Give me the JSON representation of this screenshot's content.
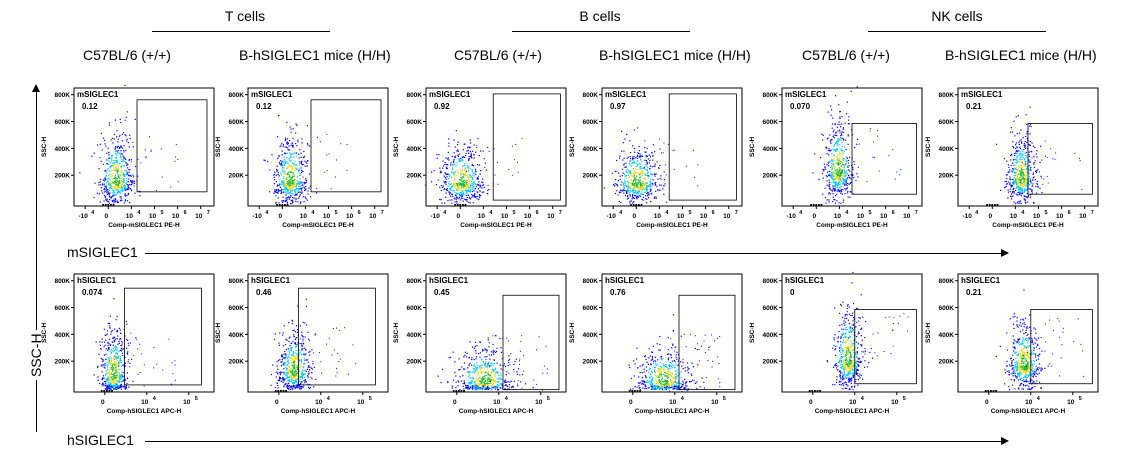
{
  "groups": [
    {
      "label": "T cells"
    },
    {
      "label": "B cells"
    },
    {
      "label": "NK cells"
    }
  ],
  "columns": [
    "C57BL/6 (+/+)",
    "B-hSIGLEC1 mice  (H/H)",
    "C57BL/6 (+/+)",
    "B-hSIGLEC1 mice (H/H)",
    "C57BL/6 (+/+)",
    "B-hSIGLEC1 mice (H/H)"
  ],
  "axis_labels": {
    "y": "SSC-H",
    "x_row1": "mSIGLEC1",
    "x_row2": "hSIGLEC1"
  },
  "colors": {
    "density_low": "#0000ff",
    "density_mid": "#00c8ff",
    "density_high": "#ffd700",
    "density_peak": "#22bb22",
    "gate": "#000000"
  },
  "chart_data": [
    {
      "type": "scatter",
      "row": 1,
      "col": 1,
      "gate_label": "mSIGLEC1",
      "percent": "0.12",
      "xlabel": "Comp-mSIGLEC1 PE-H",
      "ylabel": "SSC-H",
      "x_ticks": [
        "-10",
        "0",
        "10",
        "10",
        "10",
        "10"
      ],
      "x_tick_exps": [
        "4",
        "",
        "4",
        "5",
        "6",
        "7"
      ],
      "y_ticks": [
        "200K",
        "400K",
        "600K",
        "800K"
      ]
    },
    {
      "type": "scatter",
      "row": 1,
      "col": 2,
      "gate_label": "mSIGLEC1",
      "percent": "0.12",
      "xlabel": "Comp-mSIGLEC1 PE-H",
      "ylabel": "SSC-H",
      "x_ticks": [
        "-10",
        "0",
        "10",
        "10",
        "10",
        "10"
      ],
      "x_tick_exps": [
        "4",
        "",
        "4",
        "5",
        "6",
        "7"
      ],
      "y_ticks": [
        "200K",
        "400K",
        "600K",
        "800K"
      ]
    },
    {
      "type": "scatter",
      "row": 1,
      "col": 3,
      "gate_label": "mSIGLEC1",
      "percent": "0.92",
      "xlabel": "Comp-mSIGLEC1 PE-H",
      "ylabel": "SSC-H",
      "x_ticks": [
        "-10",
        "0",
        "10",
        "10",
        "10",
        "10"
      ],
      "x_tick_exps": [
        "4",
        "",
        "4",
        "5",
        "6",
        "7"
      ],
      "y_ticks": [
        "200K",
        "400K",
        "600K",
        "800K"
      ]
    },
    {
      "type": "scatter",
      "row": 1,
      "col": 4,
      "gate_label": "mSIGLEC1",
      "percent": "0.97",
      "xlabel": "Comp-mSIGLEC1 PE-H",
      "ylabel": "SSC-H",
      "x_ticks": [
        "-10",
        "0",
        "10",
        "10",
        "10",
        "10"
      ],
      "x_tick_exps": [
        "4",
        "",
        "4",
        "5",
        "6",
        "7"
      ],
      "y_ticks": [
        "200K",
        "400K",
        "600K",
        "800K"
      ]
    },
    {
      "type": "scatter",
      "row": 1,
      "col": 5,
      "gate_label": "mSIGLEC1",
      "percent": "0.070",
      "xlabel": "Comp-mSIGLEC1 PE-H",
      "ylabel": "SSC-H",
      "x_ticks": [
        "-10",
        "0",
        "10",
        "10",
        "10",
        "10"
      ],
      "x_tick_exps": [
        "4",
        "",
        "4",
        "5",
        "6",
        "7"
      ],
      "y_ticks": [
        "200K",
        "400K",
        "600K",
        "800K"
      ]
    },
    {
      "type": "scatter",
      "row": 1,
      "col": 6,
      "gate_label": "mSIGLEC1",
      "percent": "0.21",
      "xlabel": "Comp-mSIGLEC1 PE-H",
      "ylabel": "SSC-H",
      "x_ticks": [
        "-10",
        "0",
        "10",
        "10",
        "10",
        "10"
      ],
      "x_tick_exps": [
        "4",
        "",
        "4",
        "5",
        "6",
        "7"
      ],
      "y_ticks": [
        "200K",
        "400K",
        "600K",
        "800K"
      ]
    },
    {
      "type": "scatter",
      "row": 2,
      "col": 1,
      "gate_label": "hSIGLEC1",
      "percent": "0.074",
      "xlabel": "Comp-hSIGLEC1 APC-H",
      "ylabel": "SSC-H",
      "x_ticks": [
        "0",
        "10",
        "10"
      ],
      "x_tick_exps": [
        "",
        "4",
        "5"
      ],
      "y_ticks": [
        "200K",
        "400K",
        "600K",
        "800K"
      ]
    },
    {
      "type": "scatter",
      "row": 2,
      "col": 2,
      "gate_label": "hSIGLEC1",
      "percent": "0.46",
      "xlabel": "Comp-hSIGLEC1 APC-H",
      "ylabel": "SSC-H",
      "x_ticks": [
        "0",
        "10",
        "10"
      ],
      "x_tick_exps": [
        "",
        "4",
        "5"
      ],
      "y_ticks": [
        "200K",
        "400K",
        "600K",
        "800K"
      ]
    },
    {
      "type": "scatter",
      "row": 2,
      "col": 3,
      "gate_label": "hSIGLEC1",
      "percent": "0.45",
      "xlabel": "Comp-hSIGLEC1 APC-H",
      "ylabel": "SSC-H",
      "x_ticks": [
        "0",
        "10",
        "10"
      ],
      "x_tick_exps": [
        "",
        "4",
        "5"
      ],
      "y_ticks": [
        "200K",
        "400K",
        "600K",
        "800K"
      ]
    },
    {
      "type": "scatter",
      "row": 2,
      "col": 4,
      "gate_label": "hSIGLEC1",
      "percent": "0.76",
      "xlabel": "Comp-hSIGLEC1 APC-H",
      "ylabel": "SSC-H",
      "x_ticks": [
        "0",
        "10",
        "10"
      ],
      "x_tick_exps": [
        "",
        "4",
        "5"
      ],
      "y_ticks": [
        "200K",
        "400K",
        "600K",
        "800K"
      ]
    },
    {
      "type": "scatter",
      "row": 2,
      "col": 5,
      "gate_label": "hSIGLEC1",
      "percent": "0",
      "xlabel": "Comp-hSIGLEC1 APC-H",
      "ylabel": "SSC-H",
      "x_ticks": [
        "0",
        "10",
        "10"
      ],
      "x_tick_exps": [
        "",
        "4",
        "5"
      ],
      "y_ticks": [
        "200K",
        "400K",
        "600K",
        "800K"
      ]
    },
    {
      "type": "scatter",
      "row": 2,
      "col": 6,
      "gate_label": "hSIGLEC1",
      "percent": "0.21",
      "xlabel": "Comp-hSIGLEC1 APC-H",
      "ylabel": "SSC-H",
      "x_ticks": [
        "0",
        "10",
        "10"
      ],
      "x_tick_exps": [
        "",
        "4",
        "5"
      ],
      "y_ticks": [
        "200K",
        "400K",
        "600K",
        "800K"
      ]
    }
  ]
}
